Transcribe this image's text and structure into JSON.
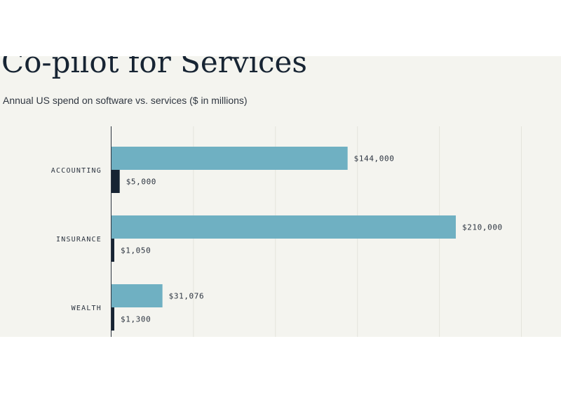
{
  "title": "Co-pilot for Services",
  "subtitle": "Annual US spend on software vs. services ($ in millions)",
  "colors": {
    "background": "#f4f4ef",
    "services_bar": "#6fb0c2",
    "software_bar": "#172433",
    "text": "#172433"
  },
  "chart_data": {
    "type": "bar",
    "orientation": "horizontal",
    "categories": [
      "ACCOUNTING",
      "INSURANCE",
      "WEALTH"
    ],
    "series": [
      {
        "values": [
          144000,
          210000,
          31076
        ],
        "labels": [
          "$144,000",
          "$210,000",
          "$31,076"
        ],
        "color": "#6fb0c2"
      },
      {
        "values": [
          5000,
          1050,
          1300
        ],
        "labels": [
          "$5,000",
          "$1,050",
          "$1,300"
        ],
        "color": "#172433"
      }
    ],
    "xlim": [
      0,
      250000
    ],
    "grid": true,
    "legend": "none"
  }
}
